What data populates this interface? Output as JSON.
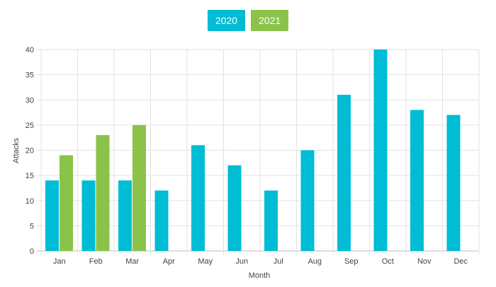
{
  "chart_data": {
    "type": "bar",
    "categories": [
      "Jan",
      "Feb",
      "Mar",
      "Apr",
      "May",
      "Jun",
      "Jul",
      "Aug",
      "Sep",
      "Oct",
      "Nov",
      "Dec"
    ],
    "series": [
      {
        "name": "2020",
        "color": "#00bcd4",
        "values": [
          14,
          14,
          14,
          12,
          21,
          17,
          12,
          20,
          31,
          40,
          28,
          27
        ]
      },
      {
        "name": "2021",
        "color": "#8bc34a",
        "values": [
          19,
          23,
          25,
          null,
          null,
          null,
          null,
          null,
          null,
          null,
          null,
          null
        ]
      }
    ],
    "xlabel": "Month",
    "ylabel": "Attacks",
    "ylim": [
      0,
      40
    ],
    "yticks": [
      0,
      5,
      10,
      15,
      20,
      25,
      30,
      35,
      40
    ],
    "grid": true,
    "legend_position": "top-center"
  }
}
